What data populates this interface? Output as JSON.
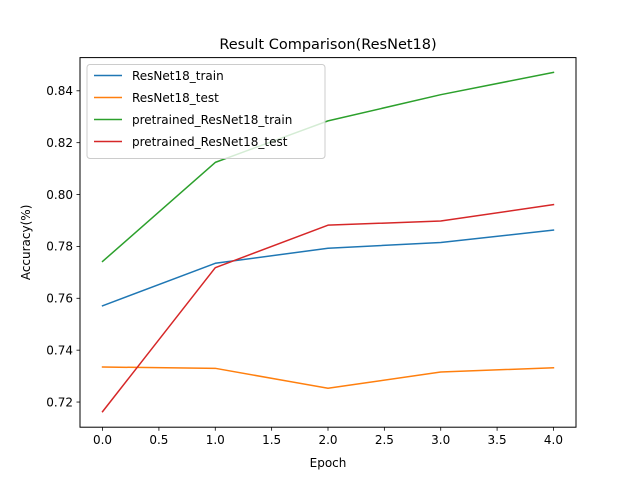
{
  "chart_data": {
    "type": "line",
    "title": "Result Comparison(ResNet18)",
    "xlabel": "Epoch",
    "ylabel": "Accuracy(%)",
    "x": [
      0,
      1,
      2,
      3,
      4
    ],
    "xlim": [
      -0.2,
      4.2
    ],
    "ylim": [
      0.7103,
      0.8528
    ],
    "xticks": [
      0.0,
      0.5,
      1.0,
      1.5,
      2.0,
      2.5,
      3.0,
      3.5,
      4.0
    ],
    "xtick_labels": [
      "0.0",
      "0.5",
      "1.0",
      "1.5",
      "2.0",
      "2.5",
      "3.0",
      "3.5",
      "4.0"
    ],
    "yticks": [
      0.72,
      0.74,
      0.76,
      0.78,
      0.8,
      0.82,
      0.84
    ],
    "ytick_labels": [
      "0.72",
      "0.74",
      "0.76",
      "0.78",
      "0.80",
      "0.82",
      "0.84"
    ],
    "grid": false,
    "legend_position": "top-left",
    "series": [
      {
        "name": "ResNet18_train",
        "color": "#1f77b4",
        "values": [
          0.7571,
          0.7735,
          0.7793,
          0.7815,
          0.7863
        ]
      },
      {
        "name": "ResNet18_test",
        "color": "#ff7f0e",
        "values": [
          0.7335,
          0.733,
          0.7253,
          0.7316,
          0.7332
        ]
      },
      {
        "name": "pretrained_ResNet18_train",
        "color": "#2ca02c",
        "values": [
          0.7742,
          0.8124,
          0.8284,
          0.8385,
          0.8471
        ]
      },
      {
        "name": "pretrained_ResNet18_test",
        "color": "#d62728",
        "values": [
          0.7163,
          0.7718,
          0.7882,
          0.7898,
          0.7961
        ]
      }
    ]
  }
}
